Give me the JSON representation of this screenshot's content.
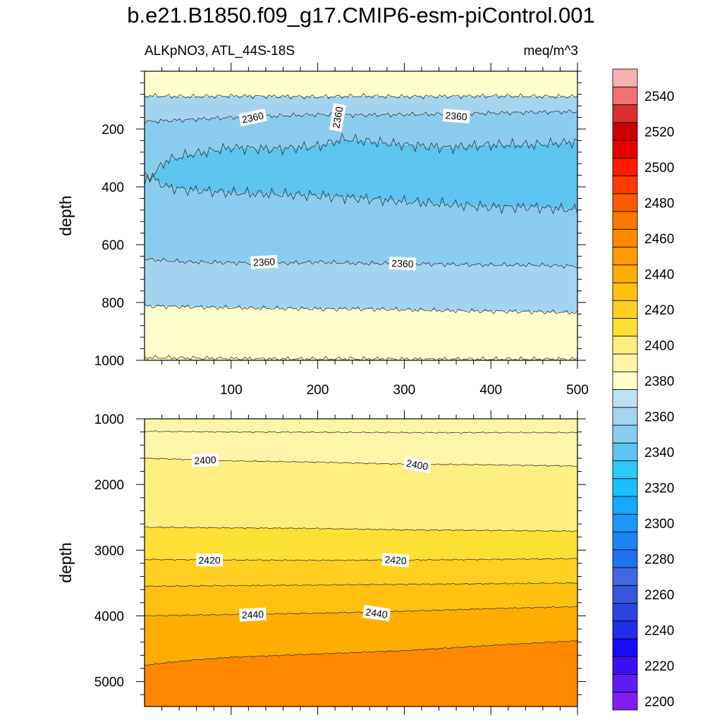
{
  "chart_data": {
    "type": "contour",
    "title": "b.e21.B1850.f09_g17.CMIP6-esm-piControl.001",
    "subtitle_left": "ALKpNO3, ATL_44S-18S",
    "subtitle_right": "meq/m^3",
    "xlim": [
      0,
      500
    ],
    "x_ticks": [
      100,
      200,
      300,
      400,
      500
    ],
    "colorbar": {
      "levels": [
        2200,
        2210,
        2220,
        2230,
        2240,
        2250,
        2260,
        2270,
        2280,
        2290,
        2300,
        2310,
        2320,
        2330,
        2340,
        2350,
        2360,
        2370,
        2380,
        2390,
        2400,
        2410,
        2420,
        2430,
        2440,
        2450,
        2460,
        2470,
        2480,
        2490,
        2500,
        2510,
        2520,
        2530,
        2540,
        2550
      ],
      "tick_labels": [
        "2200",
        "2220",
        "2240",
        "2260",
        "2280",
        "2300",
        "2320",
        "2340",
        "2360",
        "2380",
        "2400",
        "2420",
        "2440",
        "2460",
        "2480",
        "2500",
        "2520",
        "2540"
      ],
      "colors": [
        "#7f1fef",
        "#5e1cf2",
        "#3b10f5",
        "#1a0af8",
        "#1f2ee8",
        "#2a44e0",
        "#3656dc",
        "#4168e0",
        "#1e72ee",
        "#1a84f5",
        "#1898f9",
        "#12aafa",
        "#1cbef9",
        "#2ec8fa",
        "#5ec4f0",
        "#8accee",
        "#a2d4f0",
        "#bfe2f2",
        "#ffffcd",
        "#fff5a8",
        "#ffee80",
        "#ffe034",
        "#ffd020",
        "#ffc010",
        "#ffae00",
        "#ff9b00",
        "#ff8800",
        "#ff7600",
        "#ff5a00",
        "#ff3c00",
        "#ff1a00",
        "#e80000",
        "#cf0000",
        "#db2e2e",
        "#ee7070",
        "#f9b0b0"
      ]
    },
    "panels": [
      {
        "name": "upper",
        "ylabel": "depth",
        "ylim": [
          0,
          1000
        ],
        "y_ticks": [
          200,
          400,
          600,
          800,
          1000
        ],
        "y_inverted": true,
        "contour_lines": [
          {
            "x": [
              0,
              50,
              100,
              150,
              200,
              250,
              300,
              350,
              400,
              450,
              500
            ],
            "y": [
              85,
              88,
              86,
              87,
              89,
              86,
              88,
              87,
              86,
              87,
              88
            ]
          },
          {
            "x": [
              0,
              50,
              100,
              150,
              200,
              250,
              300,
              350,
              400,
              450,
              500
            ],
            "y": [
              175,
              168,
              160,
              155,
              150,
              152,
              150,
              148,
              145,
              142,
              140
            ]
          },
          {
            "x": [
              0,
              25,
              50,
              100,
              150,
              200,
              230,
              300,
              350,
              400,
              450,
              500
            ],
            "y": [
              390,
              310,
              290,
              265,
              270,
              260,
              235,
              255,
              265,
              255,
              255,
              245
            ]
          },
          {
            "x": [
              0,
              25,
              50,
              100,
              150,
              200,
              250,
              300,
              350,
              400,
              450,
              500
            ],
            "y": [
              350,
              400,
              410,
              420,
              425,
              430,
              440,
              450,
              460,
              470,
              470,
              480
            ]
          },
          {
            "x": [
              0,
              50,
              100,
              150,
              200,
              250,
              300,
              350,
              400,
              450,
              500
            ],
            "y": [
              650,
              660,
              662,
              665,
              660,
              665,
              665,
              668,
              670,
              670,
              675
            ]
          },
          {
            "x": [
              0,
              50,
              100,
              150,
              200,
              250,
              300,
              350,
              400,
              450,
              500
            ],
            "y": [
              812,
              815,
              818,
              820,
              822,
              822,
              825,
              828,
              830,
              832,
              835
            ]
          },
          {
            "x": [
              0,
              50,
              100,
              150,
              200,
              250,
              300,
              350,
              400,
              450,
              500
            ],
            "y": [
              990,
              992,
              994,
              995,
              995,
              995,
              996,
              996,
              996,
              996,
              996
            ]
          }
        ],
        "contour_labels": [
          {
            "text": "2360",
            "x": 125,
            "y": 160,
            "angle": -12
          },
          {
            "text": "2360",
            "x": 223,
            "y": 160,
            "angle": -80
          },
          {
            "text": "2360",
            "x": 360,
            "y": 155,
            "angle": 4
          },
          {
            "text": "2360",
            "x": 138,
            "y": 660,
            "angle": -3
          },
          {
            "text": "2360",
            "x": 298,
            "y": 665,
            "angle": 2
          }
        ]
      },
      {
        "name": "lower",
        "ylabel": "depth",
        "ylim": [
          1000,
          5380
        ],
        "y_ticks": [
          1000,
          2000,
          3000,
          4000,
          5000
        ],
        "y_inverted": true,
        "contour_lines": [
          {
            "x": [
              0,
              100,
              200,
              300,
              400,
              500
            ],
            "y": [
              1190,
              1200,
              1205,
              1210,
              1210,
              1210
            ]
          },
          {
            "x": [
              0,
              100,
              200,
              300,
              400,
              500
            ],
            "y": [
              1600,
              1640,
              1660,
              1690,
              1700,
              1720
            ]
          },
          {
            "x": [
              0,
              100,
              200,
              300,
              400,
              500
            ],
            "y": [
              2650,
              2660,
              2670,
              2690,
              2700,
              2710
            ]
          },
          {
            "x": [
              0,
              100,
              200,
              300,
              400,
              500
            ],
            "y": [
              3140,
              3150,
              3155,
              3150,
              3140,
              3130
            ]
          },
          {
            "x": [
              0,
              100,
              200,
              300,
              400,
              500
            ],
            "y": [
              3550,
              3540,
              3530,
              3520,
              3510,
              3500
            ]
          },
          {
            "x": [
              0,
              100,
              200,
              300,
              400,
              500
            ],
            "y": [
              4000,
              3980,
              3960,
              3930,
              3890,
              3860
            ]
          },
          {
            "x": [
              0,
              50,
              100,
              200,
              300,
              400,
              500
            ],
            "y": [
              4750,
              4680,
              4630,
              4580,
              4530,
              4450,
              4380
            ]
          }
        ],
        "contour_labels": [
          {
            "text": "2400",
            "x": 70,
            "y": 1630,
            "angle": -3
          },
          {
            "text": "2400",
            "x": 315,
            "y": 1700,
            "angle": 10
          },
          {
            "text": "2420",
            "x": 75,
            "y": 3150,
            "angle": 0
          },
          {
            "text": "2420",
            "x": 290,
            "y": 3150,
            "angle": 4
          },
          {
            "text": "2440",
            "x": 125,
            "y": 3980,
            "angle": -3
          },
          {
            "text": "2440",
            "x": 268,
            "y": 3960,
            "angle": 8
          }
        ]
      }
    ]
  }
}
